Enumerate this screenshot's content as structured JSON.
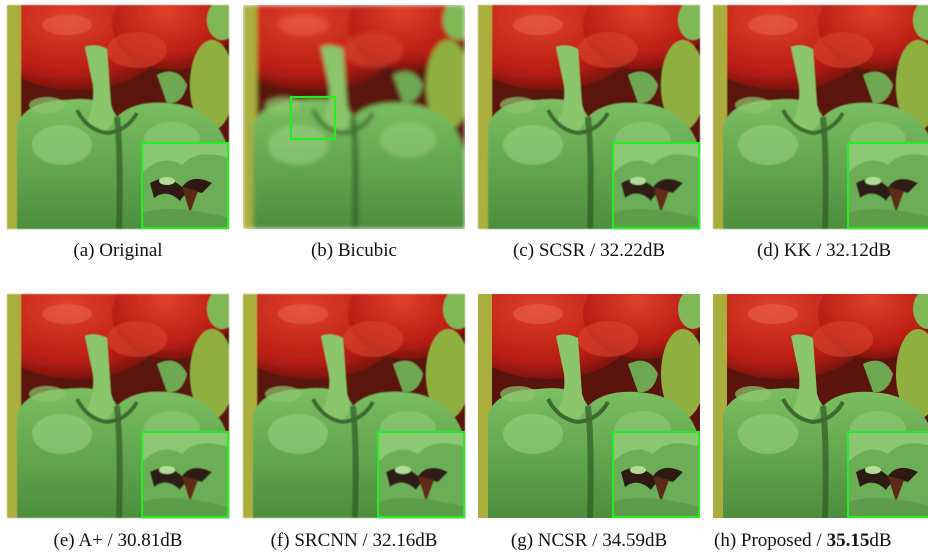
{
  "panels": [
    {
      "caption": "(a) Original"
    },
    {
      "caption": "(b) Bicubic"
    },
    {
      "caption": "(c) SCSR / 32.22dB"
    },
    {
      "caption": "(d) KK / 32.12dB"
    },
    {
      "caption": "(e) A+ / 30.81dB"
    },
    {
      "caption": "(f) SRCNN / 32.16dB"
    },
    {
      "caption": "(g) NCSR / 34.59dB"
    },
    {
      "caption": "(h) Proposed /",
      "psnr": "35.15",
      "unit": "dB"
    }
  ]
}
